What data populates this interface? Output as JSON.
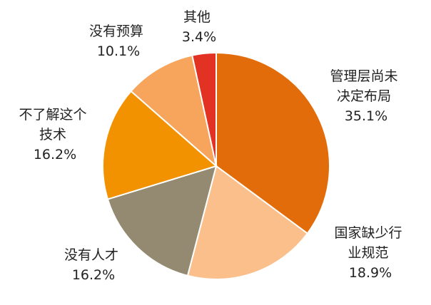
{
  "chart_data": {
    "type": "pie",
    "title": "",
    "slices": [
      {
        "name": "管理层尚未决定布局",
        "label_lines": [
          "管理层尚未",
          "决定布局"
        ],
        "value": 35.1,
        "value_label": "35.1%",
        "color": "#E36C0A"
      },
      {
        "name": "国家缺少行业规范",
        "label_lines": [
          "国家缺少行",
          "业规范"
        ],
        "value": 18.9,
        "value_label": "18.9%",
        "color": "#FBBF8C"
      },
      {
        "name": "没有人才",
        "label_lines": [
          "没有人才"
        ],
        "value": 16.2,
        "value_label": "16.2%",
        "color": "#948A72"
      },
      {
        "name": "不了解这个技术",
        "label_lines": [
          "不了解这个",
          "技术"
        ],
        "value": 16.2,
        "value_label": "16.2%",
        "color": "#F39200"
      },
      {
        "name": "没有预算",
        "label_lines": [
          "没有预算"
        ],
        "value": 10.1,
        "value_label": "10.1%",
        "color": "#F7A45C"
      },
      {
        "name": "其他",
        "label_lines": [
          "其他"
        ],
        "value": 3.4,
        "value_label": "3.4%",
        "color": "#E23224"
      }
    ],
    "start": "top",
    "direction": "clockwise",
    "legend": "none",
    "labels": "outside"
  }
}
